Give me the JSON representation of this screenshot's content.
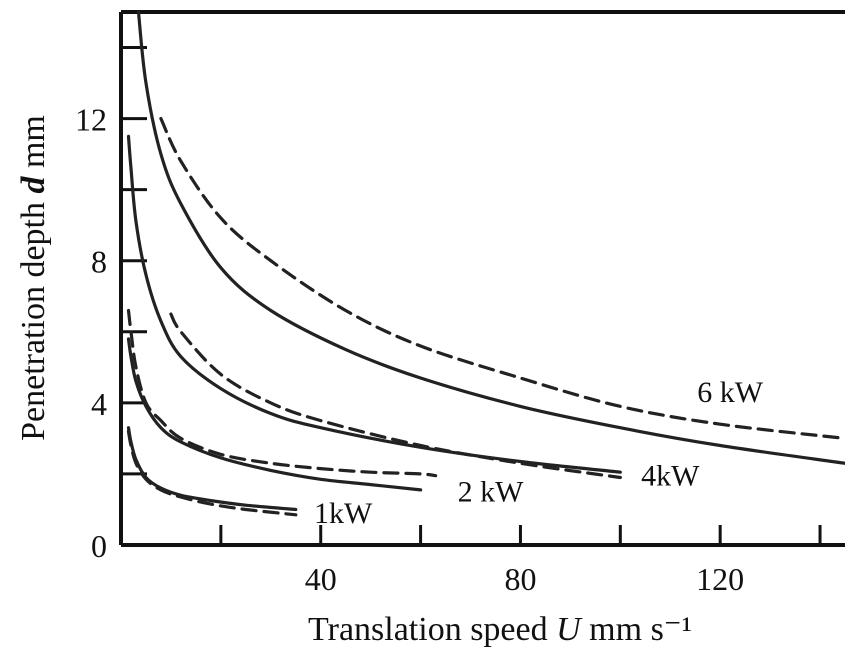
{
  "chart_data": {
    "type": "line",
    "xlabel": "Translation speed",
    "xlabel_symbol": "U",
    "xlabel_unit": "mm s⁻¹",
    "ylabel": "Penetration  depth",
    "ylabel_symbol": "d",
    "ylabel_unit": "mm",
    "xlim": [
      0,
      145
    ],
    "ylim": [
      0,
      15
    ],
    "xticks": [
      0,
      20,
      40,
      60,
      80,
      100,
      120,
      140
    ],
    "xtick_labels": [
      {
        "value": 40,
        "label": "40"
      },
      {
        "value": 80,
        "label": "80"
      },
      {
        "value": 120,
        "label": "120"
      }
    ],
    "yticks": [
      0,
      2,
      4,
      6,
      8,
      10,
      12,
      14
    ],
    "ytick_labels": [
      {
        "value": 0,
        "label": "0"
      },
      {
        "value": 4,
        "label": "4"
      },
      {
        "value": 8,
        "label": "8"
      },
      {
        "value": 12,
        "label": "12"
      }
    ],
    "grid": false,
    "series": [
      {
        "name": "1kW",
        "style": "solid",
        "x": [
          1.5,
          2,
          3,
          5,
          8,
          12,
          18,
          25,
          35
        ],
        "y": [
          3.3,
          2.9,
          2.4,
          1.9,
          1.6,
          1.4,
          1.25,
          1.12,
          1.0
        ]
      },
      {
        "name": "1kW",
        "style": "dashed",
        "x": [
          1.5,
          2,
          3,
          5,
          8,
          12,
          18,
          25,
          35
        ],
        "y": [
          3.2,
          2.8,
          2.3,
          1.85,
          1.55,
          1.35,
          1.15,
          1.0,
          0.85
        ]
      },
      {
        "name": "2 kW",
        "style": "solid",
        "x": [
          1.5,
          2,
          3,
          5,
          8,
          12,
          20,
          30,
          40,
          50,
          60
        ],
        "y": [
          5.8,
          5.3,
          4.6,
          3.9,
          3.3,
          2.9,
          2.45,
          2.1,
          1.85,
          1.7,
          1.55
        ]
      },
      {
        "name": "2 kW",
        "style": "dashed",
        "x": [
          1.5,
          2,
          3,
          5,
          8,
          12,
          20,
          30,
          40,
          50,
          60,
          63
        ],
        "y": [
          6.6,
          6.0,
          5.0,
          4.0,
          3.5,
          3.0,
          2.55,
          2.3,
          2.15,
          2.05,
          2.0,
          1.95
        ]
      },
      {
        "name": "4kW",
        "style": "solid",
        "x": [
          1.5,
          2,
          3,
          5,
          8,
          12,
          20,
          30,
          40,
          60,
          80,
          100
        ],
        "y": [
          11.5,
          10.6,
          9.1,
          7.6,
          6.3,
          5.3,
          4.4,
          3.7,
          3.3,
          2.75,
          2.35,
          2.05
        ]
      },
      {
        "name": "4kW",
        "style": "dashed",
        "x": [
          10,
          12,
          20,
          30,
          40,
          60,
          80,
          100
        ],
        "y": [
          6.5,
          6.0,
          4.8,
          4.0,
          3.5,
          2.8,
          2.3,
          1.9
        ]
      },
      {
        "name": "6 kW",
        "style": "solid",
        "x": [
          3.5,
          5,
          8,
          12,
          20,
          30,
          45,
          60,
          80,
          100,
          120,
          145
        ],
        "y": [
          15.0,
          13.0,
          11.0,
          9.6,
          7.8,
          6.6,
          5.5,
          4.7,
          3.9,
          3.3,
          2.8,
          2.3
        ]
      },
      {
        "name": "6 kW",
        "style": "dashed",
        "x": [
          8,
          12,
          20,
          30,
          45,
          60,
          80,
          100,
          120,
          145
        ],
        "y": [
          12.0,
          10.8,
          9.2,
          8.0,
          6.6,
          5.6,
          4.7,
          3.9,
          3.4,
          3.0
        ]
      }
    ],
    "curve_labels": [
      {
        "text": "1kW",
        "x": 44.5,
        "y": 0.9
      },
      {
        "text": "2 kW",
        "x": 74,
        "y": 1.5
      },
      {
        "text": "4kW",
        "x": 110,
        "y": 1.95
      },
      {
        "text": "6 kW",
        "x": 122,
        "y": 4.3
      }
    ]
  }
}
